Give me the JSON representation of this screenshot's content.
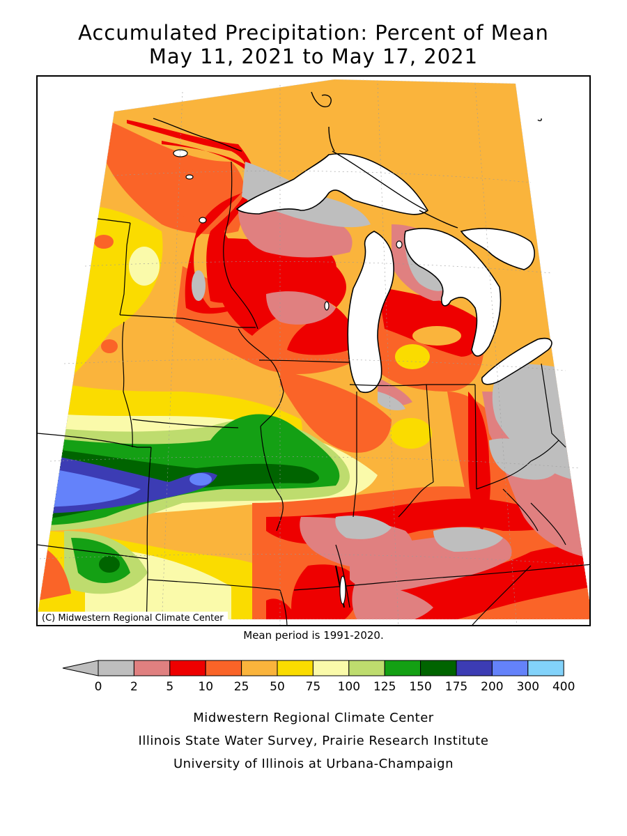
{
  "title_line1": "Accumulated Precipitation: Percent of Mean",
  "title_line2": "May 11, 2021 to May 17, 2021",
  "copyright": "(C) Midwestern Regional Climate Center",
  "mean_note": "Mean period is 1991-2020.",
  "legend": {
    "ticks": [
      "0",
      "2",
      "5",
      "10",
      "25",
      "50",
      "75",
      "100",
      "125",
      "150",
      "175",
      "200",
      "300",
      "400"
    ],
    "colors": [
      "#bebebe",
      "#e08080",
      "#ee0000",
      "#fa6428",
      "#fab43c",
      "#fadc00",
      "#fafaaa",
      "#bedc6e",
      "#14a014",
      "#006400",
      "#3c3cb4",
      "#6482fa",
      "#82d2fa"
    ],
    "below_color": "#bebebe"
  },
  "credits": {
    "line1": "Midwestern Regional Climate Center",
    "line2": "Illinois State Water Survey, Prairie Research Institute",
    "line3": "University of Illinois at Urbana-Champaign"
  }
}
